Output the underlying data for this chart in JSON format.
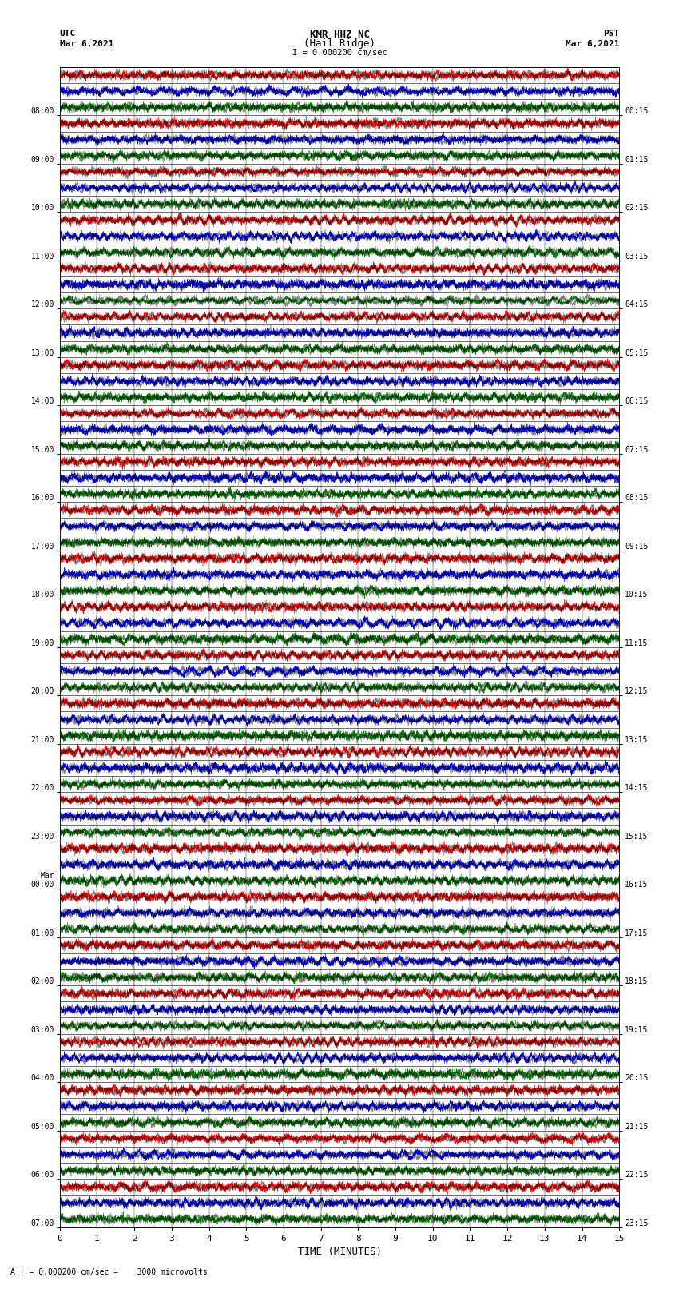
{
  "title_line1": "KMR HHZ NC",
  "title_line2": "(Hail Ridge)",
  "scale_label": "I = 0.000200 cm/sec",
  "utc_label": "UTC",
  "pst_label": "PST",
  "utc_date": "Mar 6,2021",
  "pst_date": "Mar 6,2021",
  "xlabel": "TIME (MINUTES)",
  "bottom_label": "A | = 0.000200 cm/sec =    3000 microvolts",
  "utc_times": [
    "08:00",
    "09:00",
    "10:00",
    "11:00",
    "12:00",
    "13:00",
    "14:00",
    "15:00",
    "16:00",
    "17:00",
    "18:00",
    "19:00",
    "20:00",
    "21:00",
    "22:00",
    "23:00",
    "Mar\n00:00",
    "01:00",
    "02:00",
    "03:00",
    "04:00",
    "05:00",
    "06:00",
    "07:00"
  ],
  "pst_times": [
    "00:15",
    "01:15",
    "02:15",
    "03:15",
    "04:15",
    "05:15",
    "06:15",
    "07:15",
    "08:15",
    "09:15",
    "10:15",
    "11:15",
    "12:15",
    "13:15",
    "14:15",
    "15:15",
    "16:15",
    "17:15",
    "18:15",
    "19:15",
    "20:15",
    "21:15",
    "22:15",
    "23:15"
  ],
  "n_rows": 24,
  "n_subrows": 3,
  "minutes_per_row": 15,
  "subrow_colors": [
    "red",
    "blue",
    "green"
  ],
  "fig_width": 8.5,
  "fig_height": 16.13,
  "bg_color": "white",
  "seed": 42
}
